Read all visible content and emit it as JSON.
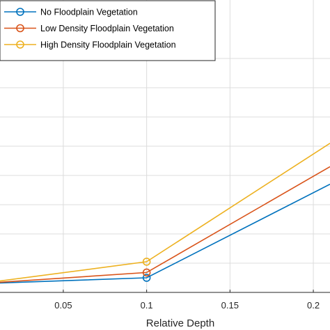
{
  "chart_data": {
    "type": "line",
    "title": "",
    "xlabel": "Relative Depth",
    "ylabel": "",
    "xlim": [
      0,
      0.21
    ],
    "ylim": [
      0,
      100
    ],
    "x_ticks": [
      0.05,
      0.1,
      0.15,
      0.2
    ],
    "x_tick_labels": [
      "0.05",
      "0.1",
      "0.15",
      "0.2"
    ],
    "y_ticks": [
      10,
      20,
      30,
      40,
      50,
      60,
      70,
      80
    ],
    "grid": true,
    "legend_position": "top-left",
    "series": [
      {
        "name": "No Floodplain Vegetation",
        "color": "#0072BD",
        "x": [
          0,
          0.1,
          0.21
        ],
        "y": [
          3,
          5,
          37
        ],
        "markers_at": [
          0.1
        ]
      },
      {
        "name": "Low Density Floodplain Vegetation",
        "color": "#D95319",
        "x": [
          0,
          0.1,
          0.21
        ],
        "y": [
          3,
          6.8,
          43
        ],
        "markers_at": [
          0.1
        ]
      },
      {
        "name": "High Density Floodplain Vegetation",
        "color": "#EDB120",
        "x": [
          0,
          0.1,
          0.21
        ],
        "y": [
          3,
          10.5,
          51
        ],
        "markers_at": [
          0.1
        ]
      }
    ]
  }
}
